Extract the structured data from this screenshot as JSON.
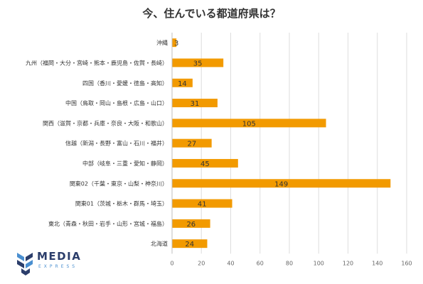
{
  "chart_data": {
    "type": "bar",
    "orientation": "horizontal",
    "title": "今、住んでいる都道府県は？",
    "categories": [
      "沖縄",
      "九州（福岡・大分・宮崎・熊本・鹿児島・佐賀・長崎）",
      "四国（香川・愛媛・徳島・高知）",
      "中国（鳥取・岡山・島根・広島・山口）",
      "関西（滋賀・京都・兵庫・奈良・大阪・和歌山）",
      "信越（新潟・長野・富山・石川・福井）",
      "中部（岐阜・三重・愛知・静岡）",
      "関東02（千葉・東京・山梨・神奈川）",
      "関東01（茨城・栃木・群馬・埼玉）",
      "東北（青森・秋田・岩手・山形・宮城・福島）",
      "北海道"
    ],
    "values": [
      3,
      35,
      14,
      31,
      105,
      27,
      45,
      149,
      41,
      26,
      24
    ],
    "xlim": [
      0,
      160
    ],
    "xticks": [
      0,
      20,
      40,
      60,
      80,
      100,
      120,
      140,
      160
    ],
    "grid": true,
    "bar_color": "#f29a00"
  },
  "logo": {
    "name": "MEDIA",
    "sub": "EXPRESS",
    "color": "#2c3e6b",
    "accent": "#4a8fd0"
  }
}
